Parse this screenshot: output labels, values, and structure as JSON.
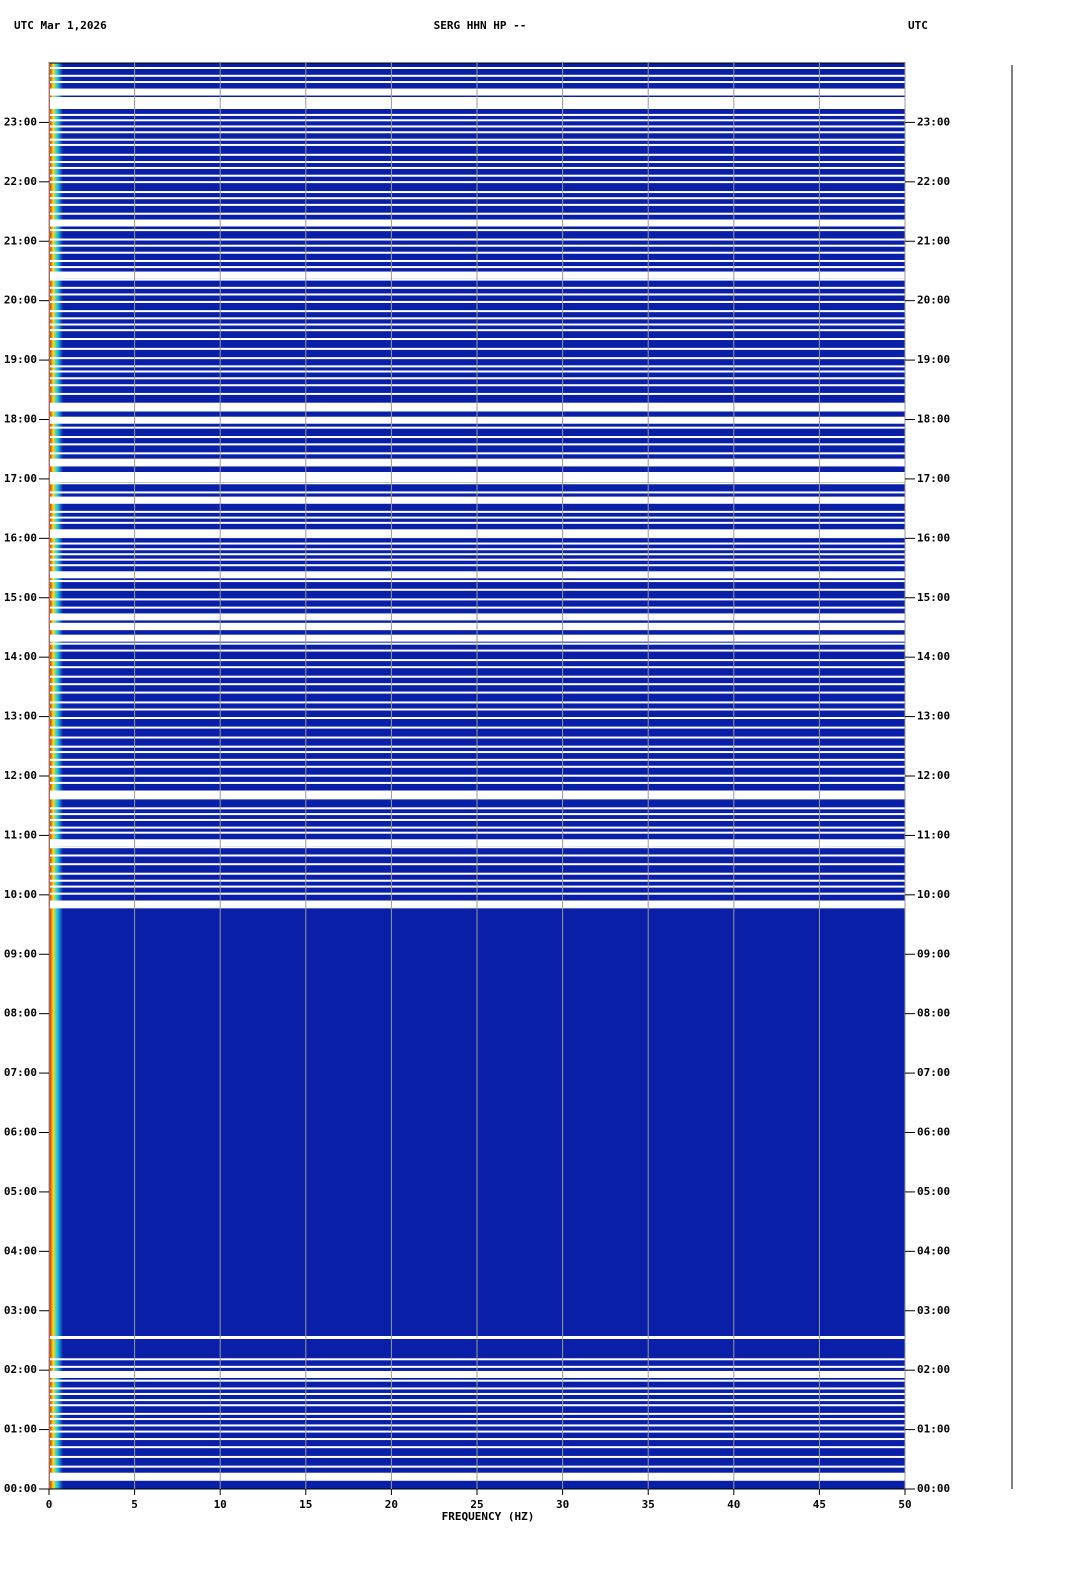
{
  "chart_data": {
    "type": "spectrogram",
    "title_left": "UTC  Mar 1,2026",
    "title": "SERG HHN HP --",
    "title_right": "UTC",
    "x_label": "FREQUENCY (HZ)",
    "xlim": [
      0,
      50
    ],
    "xticks": [
      0,
      5,
      10,
      15,
      20,
      25,
      30,
      35,
      40,
      45,
      50
    ],
    "ylim": [
      0,
      24
    ],
    "yticks": [
      {
        "value": 0,
        "label": "00:00"
      },
      {
        "value": 1,
        "label": "01:00"
      },
      {
        "value": 2,
        "label": "02:00"
      },
      {
        "value": 3,
        "label": "03:00"
      },
      {
        "value": 4,
        "label": "04:00"
      },
      {
        "value": 5,
        "label": "05:00"
      },
      {
        "value": 6,
        "label": "06:00"
      },
      {
        "value": 7,
        "label": "07:00"
      },
      {
        "value": 8,
        "label": "08:00"
      },
      {
        "value": 9,
        "label": "09:00"
      },
      {
        "value": 10,
        "label": "10:00"
      },
      {
        "value": 11,
        "label": "11:00"
      },
      {
        "value": 12,
        "label": "12:00"
      },
      {
        "value": 13,
        "label": "13:00"
      },
      {
        "value": 14,
        "label": "14:00"
      },
      {
        "value": 15,
        "label": "15:00"
      },
      {
        "value": 16,
        "label": "16:00"
      },
      {
        "value": 17,
        "label": "17:00"
      },
      {
        "value": 18,
        "label": "18:00"
      },
      {
        "value": 19,
        "label": "19:00"
      },
      {
        "value": 20,
        "label": "20:00"
      },
      {
        "value": 21,
        "label": "21:00"
      },
      {
        "value": 22,
        "label": "22:00"
      },
      {
        "value": 23,
        "label": "23:00"
      }
    ],
    "grid": true,
    "color": "#0a1fa8"
  }
}
